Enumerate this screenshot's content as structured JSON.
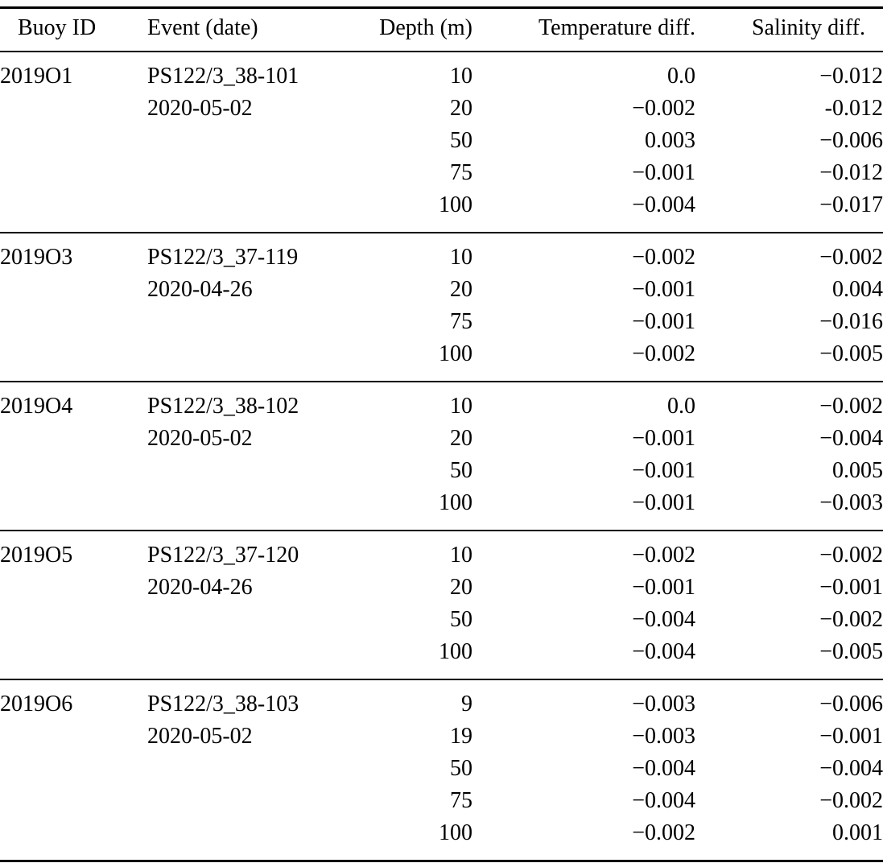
{
  "page": {
    "background": "#ffffff",
    "text_color": "#000000",
    "rule_color": "#000000"
  },
  "table": {
    "columns": [
      "Buoy ID",
      "Event (date)",
      "Depth (m)",
      "Temperature diff.",
      "Salinity diff."
    ],
    "groups": [
      {
        "buoy_id": "2019O1",
        "event": "PS122/3_38-101",
        "date": "2020-05-02",
        "rows": [
          {
            "depth": "10",
            "temperature_diff": "0.0",
            "salinity_diff": "−0.012"
          },
          {
            "depth": "20",
            "temperature_diff": "−0.002",
            "salinity_diff": "-0.012"
          },
          {
            "depth": "50",
            "temperature_diff": "0.003",
            "salinity_diff": "−0.006"
          },
          {
            "depth": "75",
            "temperature_diff": "−0.001",
            "salinity_diff": "−0.012"
          },
          {
            "depth": "100",
            "temperature_diff": "−0.004",
            "salinity_diff": "−0.017"
          }
        ]
      },
      {
        "buoy_id": "2019O3",
        "event": "PS122/3_37-119",
        "date": "2020-04-26",
        "rows": [
          {
            "depth": "10",
            "temperature_diff": "−0.002",
            "salinity_diff": "−0.002"
          },
          {
            "depth": "20",
            "temperature_diff": "−0.001",
            "salinity_diff": "0.004"
          },
          {
            "depth": "75",
            "temperature_diff": "−0.001",
            "salinity_diff": "−0.016"
          },
          {
            "depth": "100",
            "temperature_diff": "−0.002",
            "salinity_diff": "−0.005"
          }
        ]
      },
      {
        "buoy_id": "2019O4",
        "event": "PS122/3_38-102",
        "date": "2020-05-02",
        "rows": [
          {
            "depth": "10",
            "temperature_diff": "0.0",
            "salinity_diff": "−0.002"
          },
          {
            "depth": "20",
            "temperature_diff": "−0.001",
            "salinity_diff": "−0.004"
          },
          {
            "depth": "50",
            "temperature_diff": "−0.001",
            "salinity_diff": "0.005"
          },
          {
            "depth": "100",
            "temperature_diff": "−0.001",
            "salinity_diff": "−0.003"
          }
        ]
      },
      {
        "buoy_id": "2019O5",
        "event": "PS122/3_37-120",
        "date": "2020-04-26",
        "rows": [
          {
            "depth": "10",
            "temperature_diff": "−0.002",
            "salinity_diff": "−0.002"
          },
          {
            "depth": "20",
            "temperature_diff": "−0.001",
            "salinity_diff": "−0.001"
          },
          {
            "depth": "50",
            "temperature_diff": "−0.004",
            "salinity_diff": "−0.002"
          },
          {
            "depth": "100",
            "temperature_diff": "−0.004",
            "salinity_diff": "−0.005"
          }
        ]
      },
      {
        "buoy_id": "2019O6",
        "event": "PS122/3_38-103",
        "date": "2020-05-02",
        "rows": [
          {
            "depth": "9",
            "temperature_diff": "−0.003",
            "salinity_diff": "−0.006"
          },
          {
            "depth": "19",
            "temperature_diff": "−0.003",
            "salinity_diff": "−0.001"
          },
          {
            "depth": "50",
            "temperature_diff": "−0.004",
            "salinity_diff": "−0.004"
          },
          {
            "depth": "75",
            "temperature_diff": "−0.004",
            "salinity_diff": "−0.002"
          },
          {
            "depth": "100",
            "temperature_diff": "−0.002",
            "salinity_diff": "0.001"
          }
        ]
      }
    ]
  }
}
